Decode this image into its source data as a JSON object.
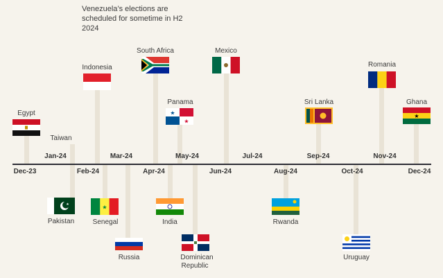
{
  "note": "Venezuela’s elections are scheduled for sometime in H2 2024",
  "months_up": [
    "Jan-24",
    "Mar-24",
    "May-24",
    "Jul-24",
    "Sep-24",
    "Nov-24"
  ],
  "months_down": [
    "Dec-23",
    "Feb-24",
    "Apr-24",
    "Jun-24",
    "Aug-24",
    "Oct-24",
    "Dec-24"
  ],
  "countries_above": [
    {
      "name": "Egypt",
      "flag": "egypt"
    },
    {
      "name": "Taiwan",
      "flag": ""
    },
    {
      "name": "Indonesia",
      "flag": "indonesia"
    },
    {
      "name": "South Africa",
      "flag": "south-africa"
    },
    {
      "name": "Panama",
      "flag": "panama"
    },
    {
      "name": "Mexico",
      "flag": "mexico"
    },
    {
      "name": "Sri Lanka",
      "flag": "sri-lanka"
    },
    {
      "name": "Romania",
      "flag": "romania"
    },
    {
      "name": "Ghana",
      "flag": "ghana"
    }
  ],
  "countries_below": [
    {
      "name": "Pakistan",
      "flag": "pakistan"
    },
    {
      "name": "Senegal",
      "flag": "senegal"
    },
    {
      "name": "Russia",
      "flag": "russia"
    },
    {
      "name": "India",
      "flag": "india"
    },
    {
      "name": "Dominican Republic",
      "line1": "Dominican",
      "line2": "Republic",
      "flag": "dominican-republic"
    },
    {
      "name": "Rwanda",
      "flag": "rwanda"
    },
    {
      "name": "Uruguay",
      "flag": "uruguay"
    }
  ],
  "colors": {
    "background": "#f6f3ec",
    "axis": "#2b2b33",
    "stem": "#e9e3d6"
  }
}
